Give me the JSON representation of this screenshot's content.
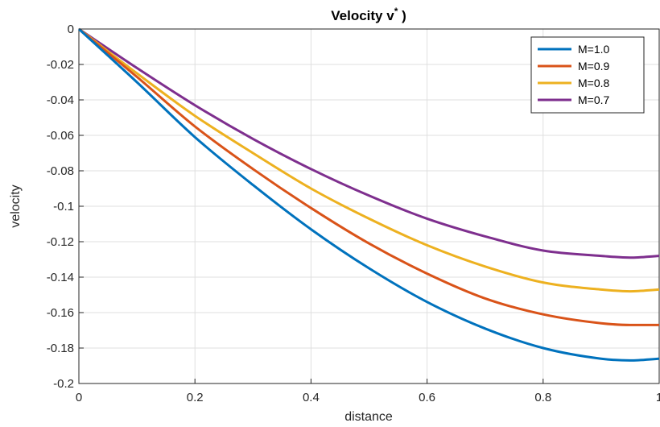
{
  "chart_data": {
    "type": "line",
    "title": "Velocity v* )",
    "xlabel": "distance",
    "ylabel": "velocity",
    "xlim": [
      0,
      1
    ],
    "ylim": [
      -0.2,
      0
    ],
    "xticks": [
      "0",
      "0.2",
      "0.4",
      "0.6",
      "0.8",
      "1"
    ],
    "xtick_values": [
      0,
      0.2,
      0.4,
      0.6,
      0.8,
      1
    ],
    "yticks": [
      "0",
      "-0.02",
      "-0.04",
      "-0.06",
      "-0.08",
      "-0.1",
      "-0.12",
      "-0.14",
      "-0.16",
      "-0.18",
      "-0.2"
    ],
    "ytick_values": [
      0,
      -0.02,
      -0.04,
      -0.06,
      -0.08,
      -0.1,
      -0.12,
      -0.14,
      -0.16,
      -0.18,
      -0.2
    ],
    "grid": true,
    "legend_position": "top-right",
    "x": [
      0,
      0.1,
      0.2,
      0.3,
      0.4,
      0.5,
      0.6,
      0.7,
      0.8,
      0.9,
      0.95,
      1.0
    ],
    "series": [
      {
        "name": "M=1.0",
        "color": "#0072BD",
        "values": [
          0,
          -0.03,
          -0.061,
          -0.088,
          -0.113,
          -0.135,
          -0.154,
          -0.169,
          -0.18,
          -0.186,
          -0.187,
          -0.186
        ]
      },
      {
        "name": "M=0.9",
        "color": "#D95319",
        "values": [
          0,
          -0.027,
          -0.055,
          -0.079,
          -0.101,
          -0.121,
          -0.138,
          -0.152,
          -0.161,
          -0.166,
          -0.167,
          -0.167
        ]
      },
      {
        "name": "M=0.8",
        "color": "#EDB120",
        "values": [
          0,
          -0.025,
          -0.049,
          -0.07,
          -0.09,
          -0.107,
          -0.122,
          -0.134,
          -0.143,
          -0.147,
          -0.148,
          -0.147
        ]
      },
      {
        "name": "M=0.7",
        "color": "#7E2F8E",
        "values": [
          0,
          -0.022,
          -0.043,
          -0.062,
          -0.079,
          -0.094,
          -0.107,
          -0.117,
          -0.125,
          -0.128,
          -0.129,
          -0.128
        ]
      }
    ]
  }
}
